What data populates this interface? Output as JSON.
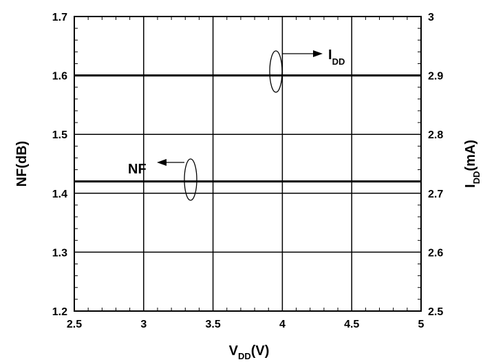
{
  "chart_data": {
    "type": "line",
    "title": "",
    "x": [
      2.5,
      3,
      3.5,
      4,
      4.5,
      5
    ],
    "xlim": [
      2.5,
      5
    ],
    "xticks": [
      "2.5",
      "3",
      "3.5",
      "4",
      "4.5",
      "5"
    ],
    "xlabel": {
      "main": "V",
      "sub": "DD",
      "unit": "(V)"
    },
    "ylim_left": [
      1.2,
      1.7
    ],
    "yticks_left": [
      "1.2",
      "1.3",
      "1.4",
      "1.5",
      "1.6",
      "1.7"
    ],
    "ylabel_left": "NF(dB)",
    "ylim_right": [
      2.5,
      3.0
    ],
    "yticks_right": [
      "2.5",
      "2.6",
      "2.7",
      "2.8",
      "2.9",
      "3"
    ],
    "ylabel_right": {
      "main": "I",
      "sub": "DD",
      "unit": "(mA)"
    },
    "grid": true,
    "series": [
      {
        "name": "NF",
        "axis": "left",
        "values": [
          1.42,
          1.42,
          1.42,
          1.42,
          1.42,
          1.42
        ]
      },
      {
        "name": "I",
        "name_sub": "DD",
        "axis": "right",
        "values": [
          2.9,
          2.9,
          2.9,
          2.9,
          2.9,
          2.9
        ]
      }
    ]
  }
}
